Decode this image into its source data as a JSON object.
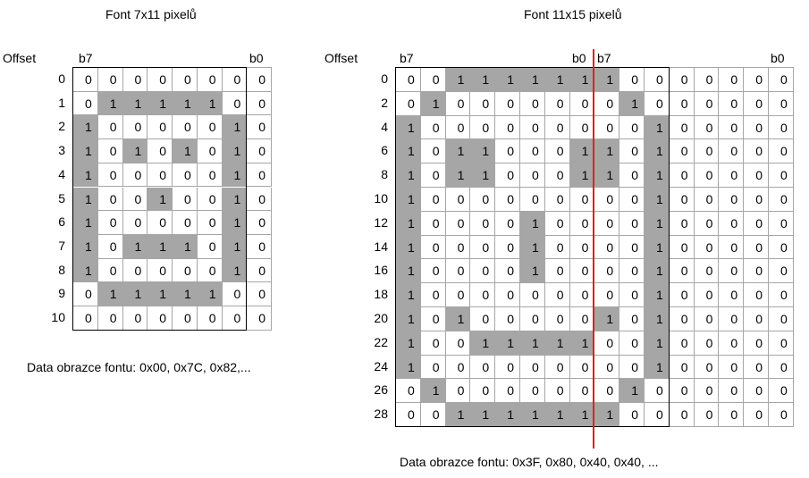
{
  "left": {
    "title": "Font 7x11 pixelů",
    "offset_label": "Offset",
    "msb_label": "b7",
    "lsb_label": "b0",
    "row_labels": [
      "0",
      "1",
      "2",
      "3",
      "4",
      "5",
      "6",
      "7",
      "8",
      "9",
      "10"
    ],
    "rows": [
      "00000000",
      "01111100",
      "10000010",
      "10101010",
      "10000010",
      "10010010",
      "10000010",
      "10111010",
      "10000010",
      "01111100",
      "00000000"
    ],
    "caption": "Data obrazce fontu: 0x00, 0x7C, 0x82,..."
  },
  "right": {
    "title": "Font 11x15 pixelů",
    "offset_label": "Offset",
    "msb_label": "b7",
    "lsb_label": "b0",
    "msb2_label": "b7",
    "lsb2_label": "b0",
    "row_labels": [
      "0",
      "2",
      "4",
      "6",
      "8",
      "10",
      "12",
      "14",
      "16",
      "18",
      "20",
      "22",
      "24",
      "26",
      "28"
    ],
    "rows": [
      "0011111110000000",
      "0100000001000000",
      "1000000000100000",
      "1011000110100000",
      "1011000110100000",
      "1000000000100000",
      "1000010000100000",
      "1000010000100000",
      "1000010000100000",
      "1000000000100000",
      "1010000010100000",
      "1001111100100000",
      "1000000000100000",
      "0100000001000000",
      "0011111110000000"
    ],
    "caption": "Data obrazce fontu: 0x3F, 0x80, 0x40, 0x40, ..."
  },
  "colors": {
    "set_pixel": "#a6a6a6",
    "grid": "#a6a6a6",
    "byte_divider": "#e02020",
    "font_border": "#000000"
  }
}
